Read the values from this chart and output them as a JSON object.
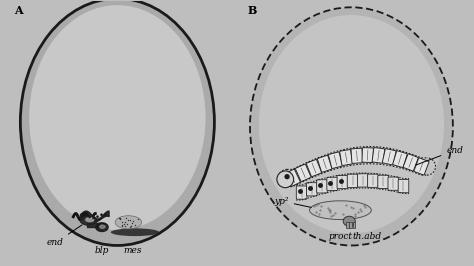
{
  "bg_color": "#bebebe",
  "egg_fill_A": "#b0b0b0",
  "egg_fill_B": "#b8b8b8",
  "egg_outline": "#1a1a1a",
  "embryo_dark": "#111111",
  "embryo_seg_face": "#e8e8e8",
  "embryo_seg_edge": "#333333",
  "label_A": "A",
  "label_B": "B",
  "label_end_A": "end",
  "label_blp": "blp",
  "label_mes": "mes",
  "label_end_B": "end",
  "label_yp2": "yp²",
  "label_proct": "proct",
  "label_thabd": "th.abd",
  "font_size_label": 6.5,
  "font_size_panel": 8,
  "axA_xlim": [
    0,
    10
  ],
  "axA_ylim": [
    0,
    12
  ],
  "axB_xlim": [
    0,
    10
  ],
  "axB_ylim": [
    0,
    12
  ]
}
